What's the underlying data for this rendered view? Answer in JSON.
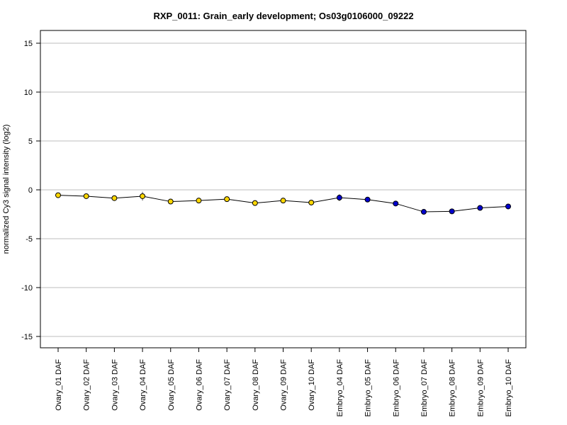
{
  "chart_data": {
    "type": "line",
    "title": "RXP_0011: Grain_early development; Os03g0106000_09222",
    "xlabel": "",
    "ylabel": "normalized Cy3 signal intensity (log2)",
    "ylim": [
      -16,
      16
    ],
    "yticks": [
      15,
      10,
      5,
      0,
      -5,
      -10,
      -15
    ],
    "ytick_labels": [
      "15",
      "10",
      "5",
      "0",
      "-5",
      "-10",
      "-15"
    ],
    "grid": "horizontal",
    "categories": [
      "Ovary_01 DAF",
      "Ovary_02 DAF",
      "Ovary_03 DAF",
      "Ovary_04 DAF",
      "Ovary_05 DAF",
      "Ovary_06 DAF",
      "Ovary_07 DAF",
      "Ovary_08 DAF",
      "Ovary_09 DAF",
      "Ovary_10 DAF",
      "Embryo_04 DAF",
      "Embryo_05 DAF",
      "Embryo_06 DAF",
      "Embryo_07 DAF",
      "Embryo_08 DAF",
      "Embryo_09 DAF",
      "Embryo_10 DAF"
    ],
    "values": [
      -0.55,
      -0.65,
      -0.85,
      -0.65,
      -1.2,
      -1.1,
      -0.95,
      -1.35,
      -1.1,
      -1.3,
      -0.8,
      -1.0,
      -1.4,
      -2.25,
      -2.2,
      -1.85,
      -1.7
    ],
    "errors": [
      0.1,
      0.1,
      0.15,
      0.45,
      0.1,
      0.1,
      0.1,
      0.15,
      0.1,
      0.1,
      0.35,
      0.1,
      0.15,
      0.1,
      0.1,
      0.2,
      0.25
    ],
    "point_colors": [
      "#ffd700",
      "#ffd700",
      "#ffd700",
      "#ffd700",
      "#ffd700",
      "#ffd700",
      "#ffd700",
      "#ffd700",
      "#ffd700",
      "#ffd700",
      "#0000cd",
      "#0000cd",
      "#0000cd",
      "#0000cd",
      "#0000cd",
      "#0000cd",
      "#0000cd"
    ],
    "line_color": "#000000",
    "gridline_color": "#bebebe"
  }
}
